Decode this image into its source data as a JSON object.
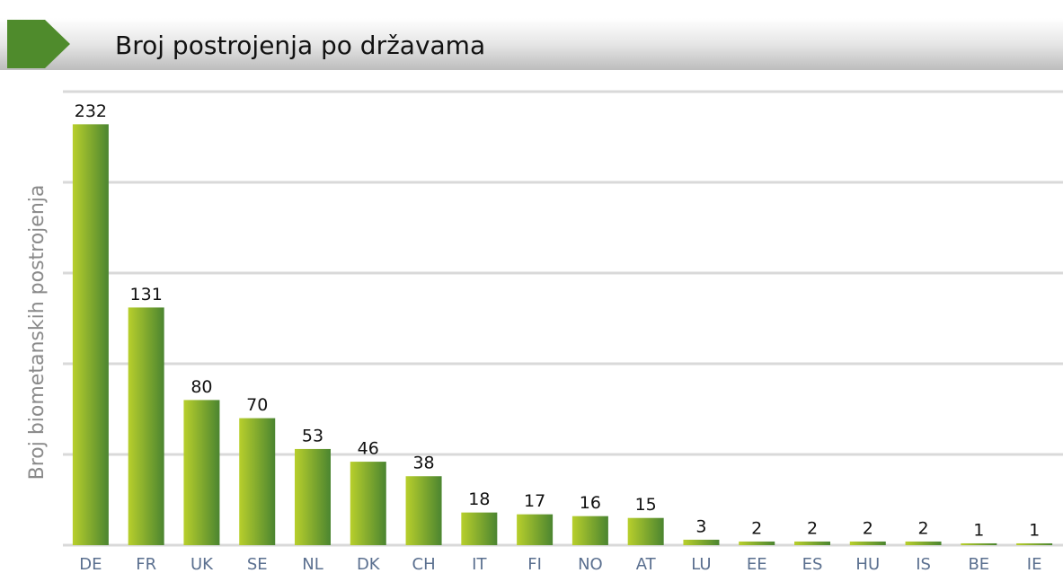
{
  "chart_data": {
    "type": "bar",
    "title": "Broj postrojenja po državama",
    "y_label": "Broj biometanskih postrojenja",
    "categories": [
      "DE",
      "FR",
      "UK",
      "SE",
      "NL",
      "DK",
      "CH",
      "IT",
      "FI",
      "NO",
      "AT",
      "LU",
      "EE",
      "ES",
      "HU",
      "IS",
      "BE",
      "IE"
    ],
    "values": [
      232,
      131,
      80,
      70,
      53,
      46,
      38,
      18,
      17,
      16,
      15,
      3,
      2,
      2,
      2,
      2,
      1,
      1
    ],
    "color": "#5f9530",
    "ylim": [
      0,
      250
    ],
    "yticks": [
      0,
      50,
      100,
      150,
      200,
      250
    ],
    "grid": true
  }
}
